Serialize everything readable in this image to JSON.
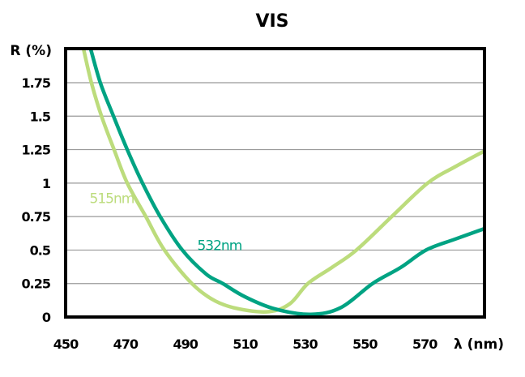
{
  "chart_data": {
    "type": "line",
    "title": "VIS",
    "xlabel": "λ (nm)",
    "ylabel": "R (%)",
    "xlim": [
      450,
      590
    ],
    "ylim": [
      0,
      2.0
    ],
    "x_ticks": [
      "450",
      "470",
      "490",
      "510",
      "530",
      "550",
      "570"
    ],
    "x_tick_values": [
      450,
      470,
      490,
      510,
      530,
      550,
      570
    ],
    "y_ticks": [
      "0",
      "0.25",
      "0.5",
      "0.75",
      "1",
      "1.25",
      "1.5",
      "1.75"
    ],
    "y_tick_values": [
      0,
      0.25,
      0.5,
      0.75,
      1,
      1.25,
      1.5,
      1.75
    ],
    "grid": "horizontal",
    "series": [
      {
        "name": "515nm",
        "color": "#bcdc7c",
        "label_at": [
          458,
          0.85
        ],
        "points": [
          [
            456,
            2.0
          ],
          [
            458.6,
            1.75
          ],
          [
            462,
            1.5
          ],
          [
            466.2,
            1.25
          ],
          [
            470.6,
            1.0
          ],
          [
            476.8,
            0.75
          ],
          [
            483,
            0.5
          ],
          [
            492.2,
            0.25
          ],
          [
            500,
            0.12
          ],
          [
            508,
            0.06
          ],
          [
            518,
            0.04
          ],
          [
            525,
            0.1
          ],
          [
            531,
            0.25
          ],
          [
            539,
            0.37
          ],
          [
            547.2,
            0.5
          ],
          [
            559,
            0.75
          ],
          [
            571,
            1.0
          ],
          [
            580,
            1.12
          ],
          [
            590,
            1.24
          ]
        ]
      },
      {
        "name": "532nm",
        "color": "#00a383",
        "label_at": [
          494,
          0.5
        ],
        "points": [
          [
            458.4,
            2.0
          ],
          [
            461.6,
            1.75
          ],
          [
            466,
            1.5
          ],
          [
            470.6,
            1.25
          ],
          [
            475.7,
            1.0
          ],
          [
            481.6,
            0.75
          ],
          [
            489,
            0.5
          ],
          [
            497,
            0.32
          ],
          [
            502.5,
            0.25
          ],
          [
            510,
            0.15
          ],
          [
            520,
            0.06
          ],
          [
            532,
            0.02
          ],
          [
            542,
            0.07
          ],
          [
            552.6,
            0.25
          ],
          [
            562,
            0.37
          ],
          [
            570.5,
            0.5
          ],
          [
            580,
            0.58
          ],
          [
            590,
            0.66
          ]
        ]
      }
    ]
  }
}
